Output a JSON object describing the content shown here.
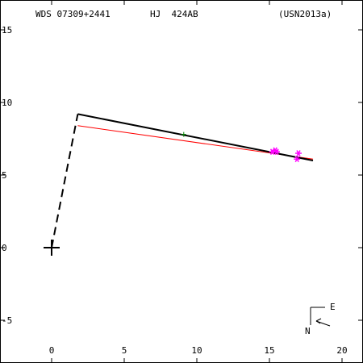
{
  "header": {
    "wds": "WDS 07309+2441",
    "name": "HJ  424AB",
    "ref": "(USN2013a)"
  },
  "compass": {
    "east": "E",
    "north": "N"
  },
  "chart_data": {
    "type": "scatter",
    "xlim": [
      -3.5,
      21.5
    ],
    "ylim": [
      -8,
      16
    ],
    "x_ticks": [
      0,
      5,
      10,
      15,
      20
    ],
    "y_ticks": [
      -5,
      0,
      5,
      10,
      15
    ],
    "grid": false,
    "primary": {
      "x": 0,
      "y": 0
    },
    "orbit_line": [
      [
        1.8,
        9.2
      ],
      [
        18.0,
        6.0
      ]
    ],
    "projection_dashes": [
      [
        0,
        0
      ],
      [
        1.8,
        9.2
      ]
    ],
    "fit_line": [
      [
        1.8,
        8.4
      ],
      [
        18.0,
        6.1
      ]
    ],
    "observations": [
      {
        "x": 15.2,
        "y": 6.6,
        "color": "#ff00ff"
      },
      {
        "x": 15.4,
        "y": 6.7,
        "color": "#ff00ff"
      },
      {
        "x": 15.5,
        "y": 6.6,
        "color": "#ff00ff"
      },
      {
        "x": 17.0,
        "y": 6.5,
        "color": "#ff00ff"
      },
      {
        "x": 16.9,
        "y": 6.1,
        "color": "#ff00ff"
      }
    ],
    "early_observation": {
      "x": 9.1,
      "y": 7.8,
      "color": "#008000"
    },
    "colors": {
      "axes": "#000000",
      "orbit": "#000000",
      "fit": "#ff0000",
      "obs": "#ff00ff"
    }
  }
}
